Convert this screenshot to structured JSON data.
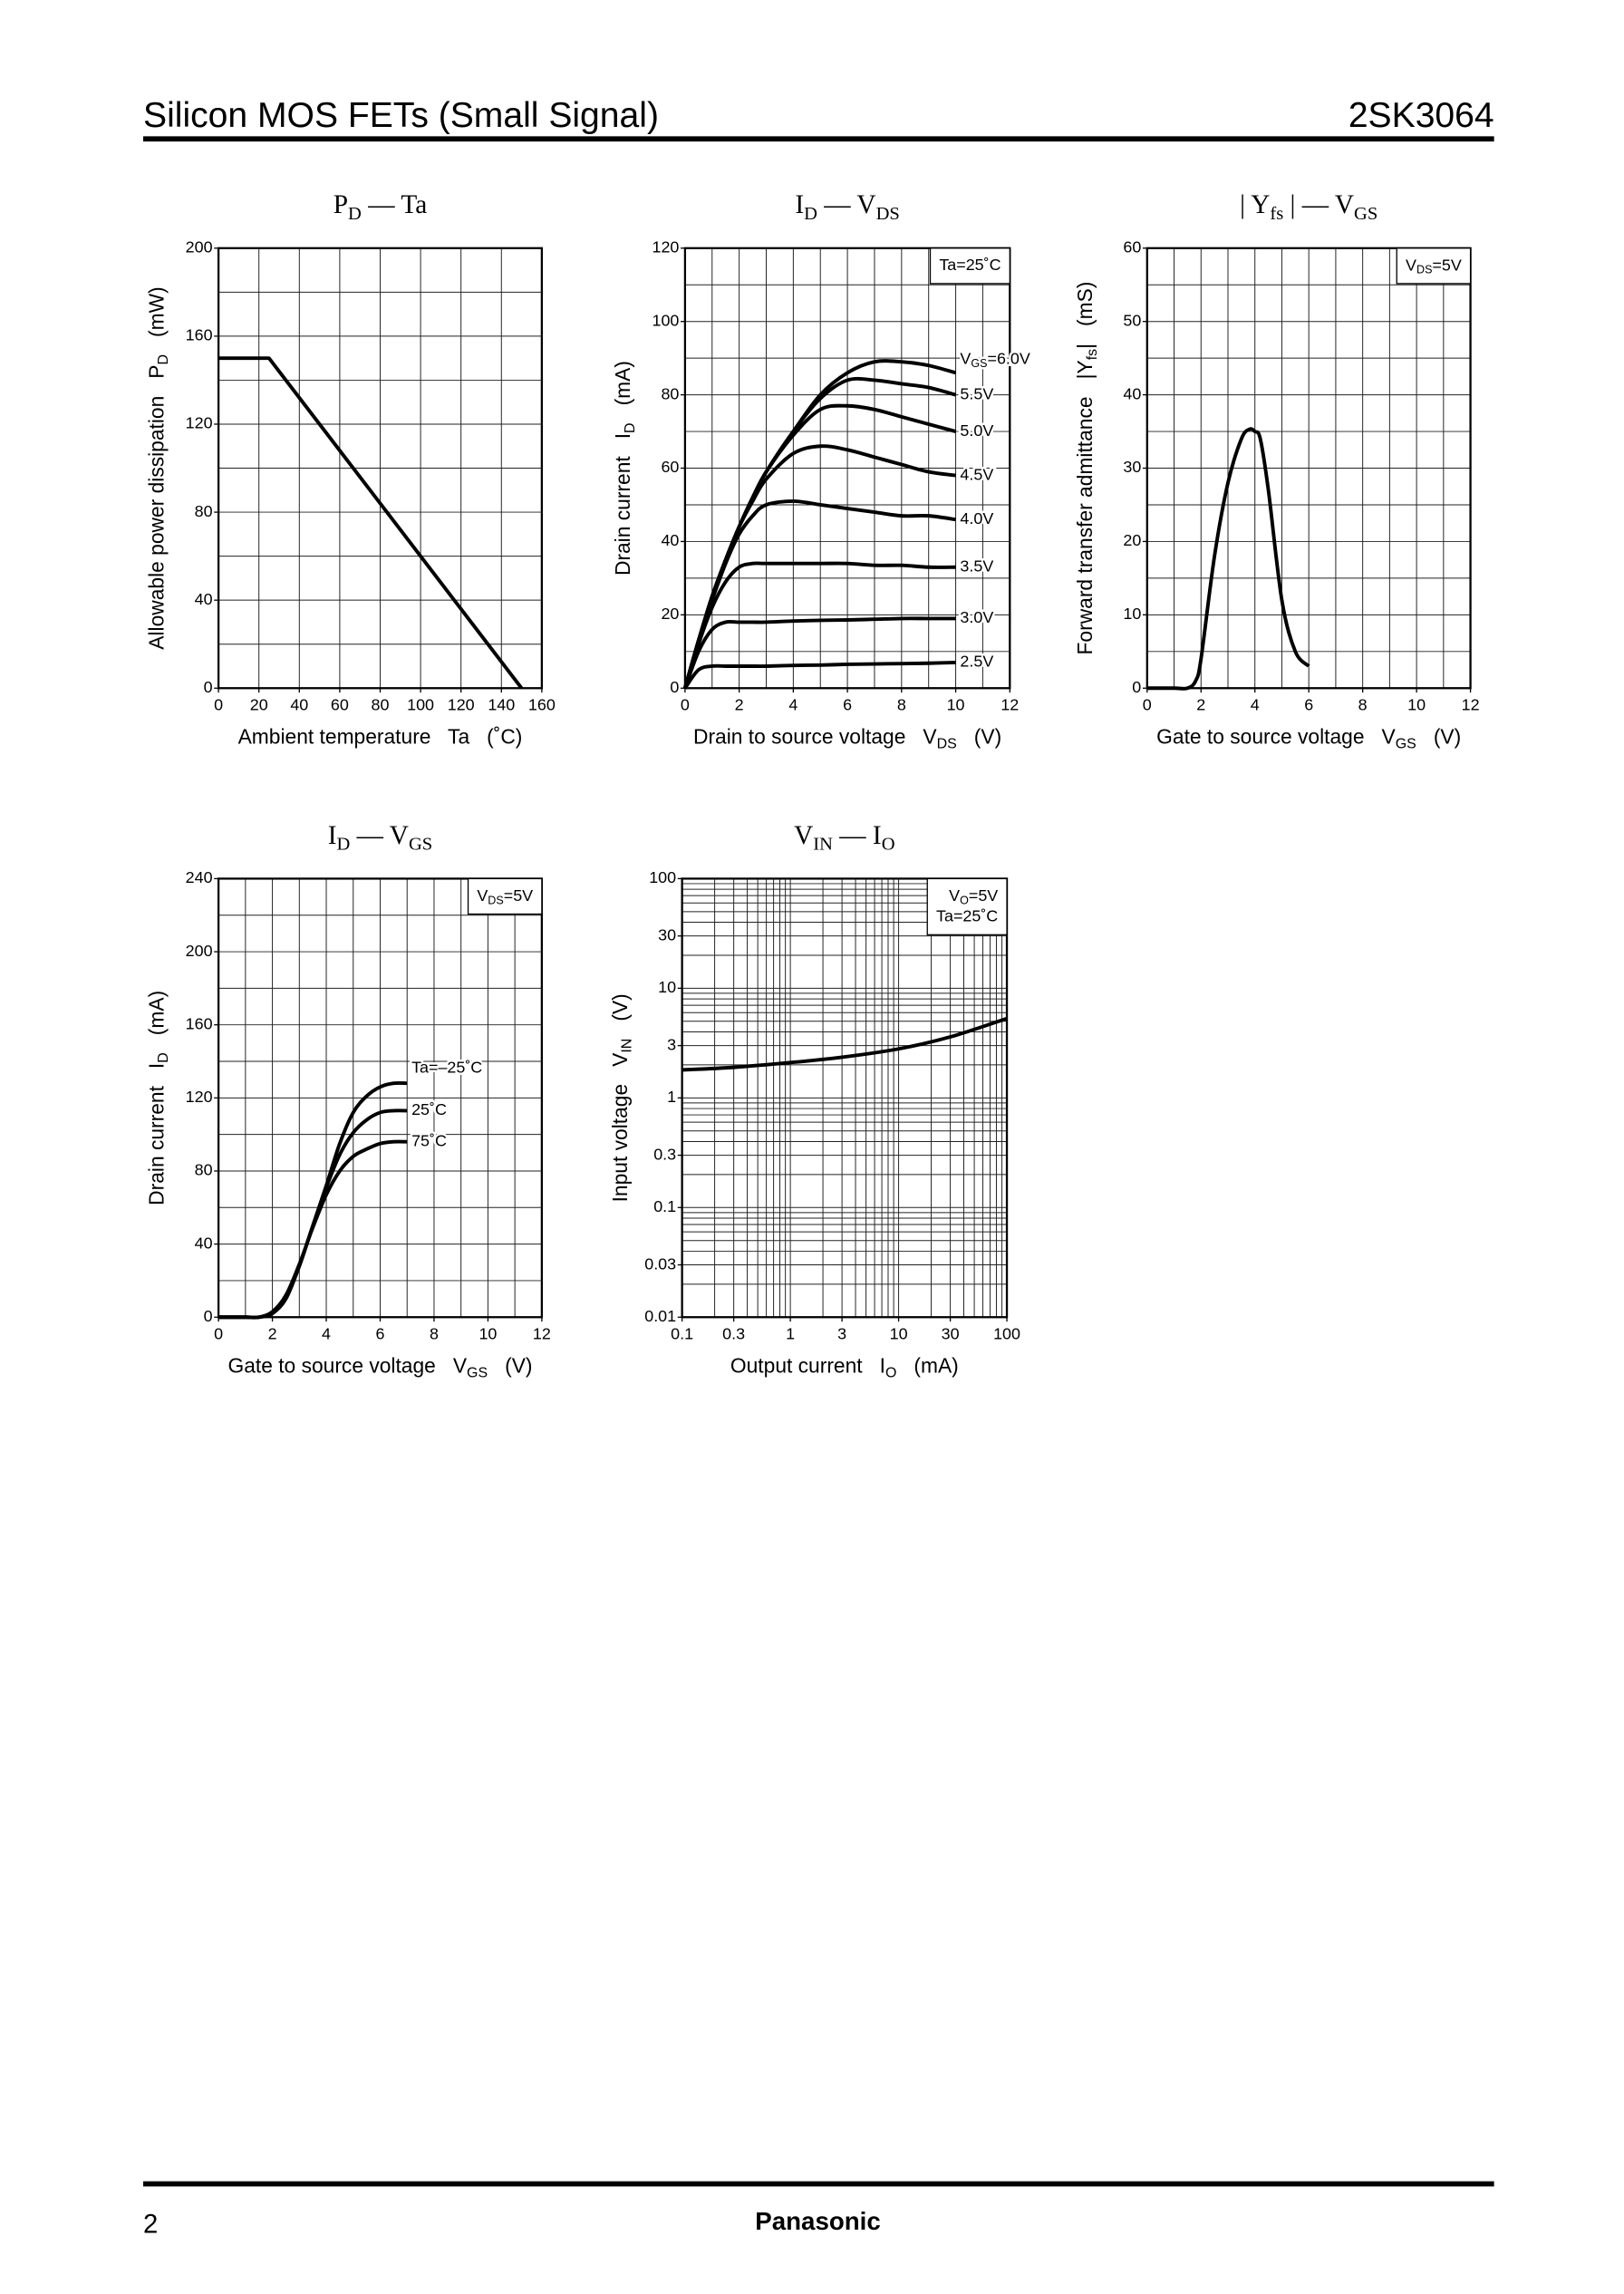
{
  "header": {
    "title": "Silicon MOS FETs (Small Signal)",
    "part": "2SK3064"
  },
  "footer": {
    "page": "2",
    "brand": "Panasonic"
  },
  "chart_data": [
    {
      "type": "line",
      "title": [
        "P",
        "D",
        " — Ta"
      ],
      "x_label": "Ambient temperature   Ta   (˚C)",
      "y_label": [
        "Allowable power dissipation   P",
        "D",
        "   (mW)"
      ],
      "x": [
        0,
        25,
        150
      ],
      "values": [
        150,
        150,
        0
      ],
      "color": "#000000",
      "interpolation": "linear",
      "xlim": [
        0,
        160
      ],
      "xticks": [
        0,
        20,
        40,
        60,
        80,
        100,
        120,
        140,
        160
      ],
      "ylim": [
        0,
        200
      ],
      "yticks": [
        0,
        40,
        80,
        120,
        160,
        200
      ],
      "xgrid": [
        0,
        20,
        40,
        60,
        80,
        100,
        120,
        140,
        160
      ],
      "ygrid": [
        0,
        20,
        40,
        60,
        80,
        100,
        120,
        140,
        160,
        180,
        200
      ]
    },
    {
      "type": "line",
      "title": [
        "I",
        "D",
        " — V",
        "DS"
      ],
      "x_label": [
        "Drain to source voltage   V",
        "DS",
        "   (V)"
      ],
      "y_label": [
        "Drain current   I",
        "D",
        "   (mA)"
      ],
      "annotation": [
        "Ta=25˚C"
      ],
      "interpolation": "smooth",
      "x": [
        0,
        0.5,
        1,
        1.5,
        2,
        2.5,
        3,
        4,
        5,
        6,
        7,
        8,
        9,
        10
      ],
      "series": [
        {
          "name": [
            "V",
            "GS",
            "=6.0V"
          ],
          "color": "#000000",
          "values": [
            0,
            13,
            25,
            35,
            44,
            52,
            59,
            70,
            80,
            86,
            89,
            89,
            88,
            86
          ]
        },
        {
          "name": "5.5V",
          "color": "#000000",
          "values": [
            0,
            13,
            25,
            35,
            44,
            52,
            59,
            70,
            79,
            84,
            84,
            83,
            82,
            80
          ]
        },
        {
          "name": "5.0V",
          "color": "#000000",
          "values": [
            0,
            13,
            25,
            35,
            44,
            52,
            59,
            69,
            76,
            77,
            76,
            74,
            72,
            70
          ]
        },
        {
          "name": "4.5V",
          "color": "#000000",
          "values": [
            0,
            13,
            25,
            35,
            44,
            51,
            57,
            64,
            66,
            65,
            63,
            61,
            59,
            58
          ]
        },
        {
          "name": "4.0V",
          "color": "#000000",
          "values": [
            0,
            13,
            24,
            34,
            42,
            47,
            50,
            51,
            50,
            49,
            48,
            47,
            47,
            46
          ]
        },
        {
          "name": "3.5V",
          "color": "#000000",
          "values": [
            0,
            12,
            22,
            29,
            33,
            34,
            34,
            34,
            34,
            34,
            33.5,
            33.5,
            33,
            33
          ]
        },
        {
          "name": "3.0V",
          "color": "#000000",
          "values": [
            0,
            10,
            16,
            18,
            18,
            18,
            18,
            18.3,
            18.5,
            18.6,
            18.8,
            19,
            19,
            19
          ]
        },
        {
          "name": "2.5V",
          "color": "#000000",
          "values": [
            0,
            5,
            6,
            6,
            6,
            6,
            6,
            6.2,
            6.3,
            6.5,
            6.6,
            6.7,
            6.8,
            7
          ]
        }
      ],
      "xlim": [
        0,
        12
      ],
      "xticks": [
        0,
        2,
        4,
        6,
        8,
        10,
        12
      ],
      "ylim": [
        0,
        120
      ],
      "yticks": [
        0,
        20,
        40,
        60,
        80,
        100,
        120
      ],
      "xgrid": [
        0,
        1,
        2,
        3,
        4,
        5,
        6,
        7,
        8,
        9,
        10,
        11,
        12
      ],
      "ygrid": [
        0,
        10,
        20,
        30,
        40,
        50,
        60,
        70,
        80,
        90,
        100,
        110,
        120
      ]
    },
    {
      "type": "line",
      "title": [
        "| Y",
        "fs",
        " | — V",
        "GS"
      ],
      "x_label": [
        "Gate to source voltage   V",
        "GS",
        "   (V)"
      ],
      "y_label": [
        "Forward transfer admittance   |Y",
        "fs",
        "|   (mS)"
      ],
      "annotation": [
        [
          "V",
          "DS",
          "=5V"
        ]
      ],
      "interpolation": "smooth",
      "x": [
        0,
        1,
        1.5,
        1.8,
        2,
        2.5,
        3,
        3.5,
        3.8,
        4,
        4.2,
        4.5,
        5,
        5.5,
        6
      ],
      "values": [
        0,
        0,
        0,
        1,
        4,
        18,
        28,
        34,
        35.3,
        35,
        34,
        27,
        12,
        5,
        3
      ],
      "color": "#000000",
      "xlim": [
        0,
        12
      ],
      "xticks": [
        0,
        2,
        4,
        6,
        8,
        10,
        12
      ],
      "ylim": [
        0,
        60
      ],
      "yticks": [
        0,
        10,
        20,
        30,
        40,
        50,
        60
      ],
      "xgrid": [
        0,
        1,
        2,
        3,
        4,
        5,
        6,
        7,
        8,
        9,
        10,
        11,
        12
      ],
      "ygrid": [
        0,
        5,
        10,
        15,
        20,
        25,
        30,
        35,
        40,
        45,
        50,
        55,
        60
      ]
    },
    {
      "type": "line",
      "title": [
        "I",
        "D",
        " — V",
        "GS"
      ],
      "x_label": [
        "Gate to source voltage   V",
        "GS",
        "   (V)"
      ],
      "y_label": [
        "Drain current   I",
        "D",
        "   (mA)"
      ],
      "annotation": [
        [
          "V",
          "DS",
          "=5V"
        ]
      ],
      "interpolation": "smooth",
      "x": [
        0,
        1,
        1.5,
        2,
        2.5,
        3,
        3.5,
        4,
        4.5,
        5,
        5.5,
        6,
        6.5,
        7
      ],
      "series": [
        {
          "name": "Ta=–25˚C",
          "color": "#000000",
          "values": [
            0,
            0,
            0,
            2,
            10,
            28,
            50,
            72,
            95,
            112,
            121,
            126,
            128,
            128
          ]
        },
        {
          "name": "25˚C",
          "color": "#000000",
          "values": [
            0,
            0,
            0,
            2.5,
            11,
            28,
            50,
            71,
            89,
            101,
            108,
            112,
            113,
            113
          ]
        },
        {
          "name": "75˚C",
          "color": "#000000",
          "values": [
            0,
            0,
            0,
            3,
            12,
            29,
            49,
            67,
            80,
            88,
            92,
            95,
            96,
            96
          ]
        }
      ],
      "xlim": [
        0,
        12
      ],
      "xticks": [
        0,
        2,
        4,
        6,
        8,
        10,
        12
      ],
      "ylim": [
        0,
        240
      ],
      "yticks": [
        0,
        40,
        80,
        120,
        160,
        200,
        240
      ],
      "xgrid": [
        0,
        1,
        2,
        3,
        4,
        5,
        6,
        7,
        8,
        9,
        10,
        11,
        12
      ],
      "ygrid": [
        0,
        20,
        40,
        60,
        80,
        100,
        120,
        140,
        160,
        180,
        200,
        220,
        240
      ]
    },
    {
      "type": "line",
      "title": [
        "V",
        "IN",
        " — I",
        "O"
      ],
      "x_label": [
        "Output current   I",
        "O",
        "   (mA)"
      ],
      "y_label": [
        "Input voltage   V",
        "IN",
        "   (V)"
      ],
      "annotation": [
        [
          "V",
          "O",
          "=5V"
        ],
        "Ta=25˚C"
      ],
      "interpolation": "smooth",
      "xscale": "log",
      "yscale": "log",
      "x": [
        0.1,
        0.3,
        1,
        3,
        10,
        30,
        100
      ],
      "values": [
        1.8,
        1.9,
        2.1,
        2.35,
        2.8,
        3.6,
        5.3
      ],
      "color": "#000000",
      "xlim": [
        0.1,
        100
      ],
      "xticks": [
        0.1,
        0.3,
        1,
        3,
        10,
        30,
        100
      ],
      "ylim": [
        0.01,
        100
      ],
      "yticks": [
        0.01,
        0.03,
        0.1,
        0.3,
        1,
        3,
        10,
        30,
        100
      ],
      "xgrid": [
        0.1,
        0.2,
        0.3,
        0.4,
        0.5,
        0.6,
        0.7,
        0.8,
        0.9,
        1,
        2,
        3,
        4,
        5,
        6,
        7,
        8,
        9,
        10,
        20,
        30,
        40,
        50,
        60,
        70,
        80,
        90,
        100
      ],
      "ygrid": [
        0.01,
        0.02,
        0.03,
        0.04,
        0.05,
        0.06,
        0.07,
        0.08,
        0.09,
        0.1,
        0.2,
        0.3,
        0.4,
        0.5,
        0.6,
        0.7,
        0.8,
        0.9,
        1,
        2,
        3,
        4,
        5,
        6,
        7,
        8,
        9,
        10,
        20,
        30,
        40,
        50,
        60,
        70,
        80,
        90,
        100
      ]
    }
  ]
}
